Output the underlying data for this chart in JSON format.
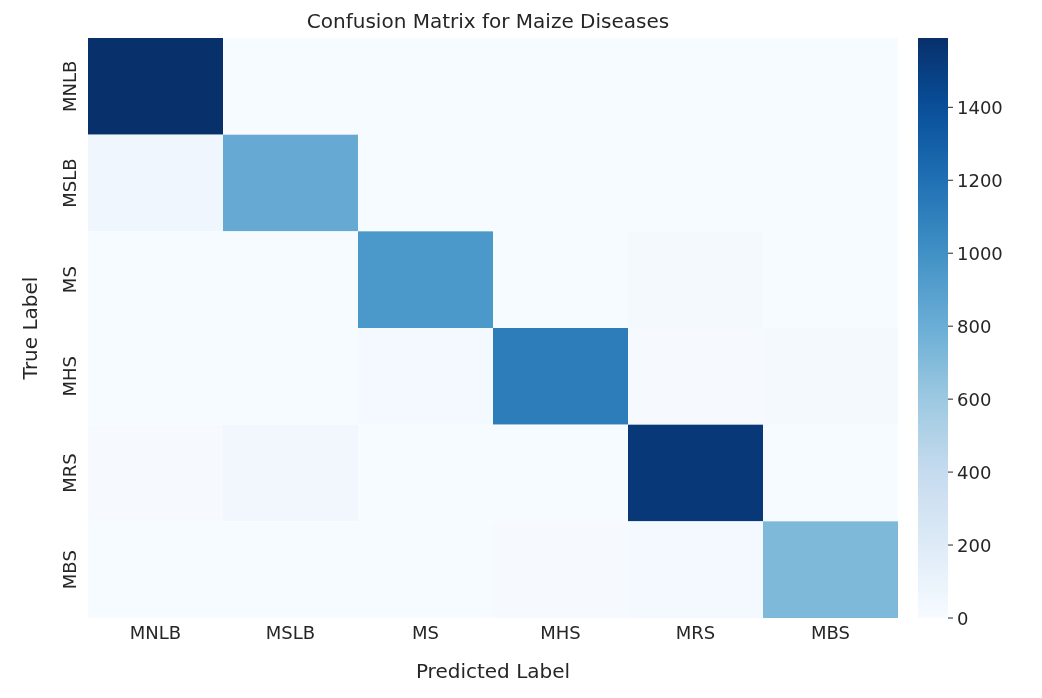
{
  "chart_data": {
    "type": "heatmap",
    "title": "Confusion Matrix for Maize Diseases",
    "xlabel": "Predicted Label",
    "ylabel": "True Label",
    "categories": [
      "MNLB",
      "MSLB",
      "MS",
      "MHS",
      "MRS",
      "MBS"
    ],
    "y_categories": [
      "MNLB",
      "MSLB",
      "MS",
      "MHS",
      "MRS",
      "MBS"
    ],
    "cells": [
      [
        1590,
        5,
        5,
        5,
        5,
        5
      ],
      [
        60,
        820,
        5,
        5,
        5,
        5
      ],
      [
        5,
        5,
        950,
        5,
        25,
        5
      ],
      [
        5,
        5,
        30,
        1120,
        10,
        20
      ],
      [
        10,
        50,
        5,
        5,
        1540,
        5
      ],
      [
        5,
        5,
        5,
        10,
        30,
        720
      ]
    ],
    "clim": [
      0,
      1590
    ],
    "cticks": [
      0,
      200,
      400,
      600,
      800,
      1000,
      1200,
      1400
    ]
  }
}
